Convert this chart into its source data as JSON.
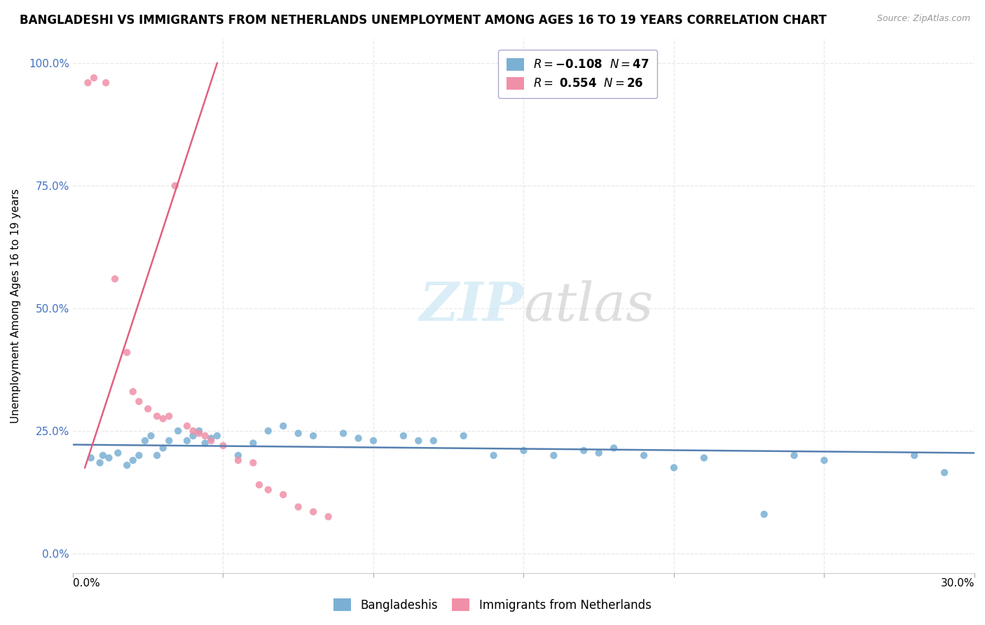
{
  "title": "BANGLADESHI VS IMMIGRANTS FROM NETHERLANDS UNEMPLOYMENT AMONG AGES 16 TO 19 YEARS CORRELATION CHART",
  "source": "Source: ZipAtlas.com",
  "ylabel": "Unemployment Among Ages 16 to 19 years",
  "x_min": 0.0,
  "x_max": 0.3,
  "y_min": -0.04,
  "y_max": 1.05,
  "ytick_vals": [
    0.0,
    0.25,
    0.5,
    0.75,
    1.0
  ],
  "ytick_labels": [
    "0.0%",
    "25.0%",
    "50.0%",
    "75.0%",
    "100.0%"
  ],
  "xtick_left_label": "0.0%",
  "xtick_right_label": "30.0%",
  "blue_scatter": [
    [
      0.006,
      0.195
    ],
    [
      0.009,
      0.185
    ],
    [
      0.01,
      0.2
    ],
    [
      0.012,
      0.195
    ],
    [
      0.015,
      0.205
    ],
    [
      0.018,
      0.18
    ],
    [
      0.02,
      0.19
    ],
    [
      0.022,
      0.2
    ],
    [
      0.024,
      0.23
    ],
    [
      0.026,
      0.24
    ],
    [
      0.028,
      0.2
    ],
    [
      0.03,
      0.215
    ],
    [
      0.032,
      0.23
    ],
    [
      0.035,
      0.25
    ],
    [
      0.038,
      0.23
    ],
    [
      0.04,
      0.24
    ],
    [
      0.042,
      0.25
    ],
    [
      0.044,
      0.225
    ],
    [
      0.046,
      0.235
    ],
    [
      0.048,
      0.24
    ],
    [
      0.055,
      0.2
    ],
    [
      0.06,
      0.225
    ],
    [
      0.065,
      0.25
    ],
    [
      0.07,
      0.26
    ],
    [
      0.075,
      0.245
    ],
    [
      0.08,
      0.24
    ],
    [
      0.09,
      0.245
    ],
    [
      0.095,
      0.235
    ],
    [
      0.1,
      0.23
    ],
    [
      0.11,
      0.24
    ],
    [
      0.115,
      0.23
    ],
    [
      0.12,
      0.23
    ],
    [
      0.13,
      0.24
    ],
    [
      0.14,
      0.2
    ],
    [
      0.15,
      0.21
    ],
    [
      0.16,
      0.2
    ],
    [
      0.17,
      0.21
    ],
    [
      0.175,
      0.205
    ],
    [
      0.18,
      0.215
    ],
    [
      0.19,
      0.2
    ],
    [
      0.2,
      0.175
    ],
    [
      0.21,
      0.195
    ],
    [
      0.23,
      0.08
    ],
    [
      0.24,
      0.2
    ],
    [
      0.25,
      0.19
    ],
    [
      0.28,
      0.2
    ],
    [
      0.29,
      0.165
    ]
  ],
  "pink_scatter": [
    [
      0.005,
      0.96
    ],
    [
      0.007,
      0.97
    ],
    [
      0.011,
      0.96
    ],
    [
      0.014,
      0.56
    ],
    [
      0.018,
      0.41
    ],
    [
      0.02,
      0.33
    ],
    [
      0.022,
      0.31
    ],
    [
      0.025,
      0.295
    ],
    [
      0.028,
      0.28
    ],
    [
      0.03,
      0.275
    ],
    [
      0.032,
      0.28
    ],
    [
      0.034,
      0.75
    ],
    [
      0.038,
      0.26
    ],
    [
      0.04,
      0.25
    ],
    [
      0.042,
      0.245
    ],
    [
      0.044,
      0.24
    ],
    [
      0.046,
      0.23
    ],
    [
      0.05,
      0.22
    ],
    [
      0.055,
      0.19
    ],
    [
      0.06,
      0.185
    ],
    [
      0.062,
      0.14
    ],
    [
      0.065,
      0.13
    ],
    [
      0.07,
      0.12
    ],
    [
      0.075,
      0.095
    ],
    [
      0.08,
      0.085
    ],
    [
      0.085,
      0.075
    ]
  ],
  "blue_line_x": [
    0.0,
    0.3
  ],
  "blue_line_y": [
    0.222,
    0.205
  ],
  "pink_line_x": [
    0.004,
    0.048
  ],
  "pink_line_y": [
    0.175,
    1.0
  ],
  "scatter_color_blue": "#7ab0d4",
  "scatter_color_pink": "#f090a8",
  "line_color_blue": "#5580b0",
  "line_color_pink": "#e06080",
  "grid_color": "#e8e8e8",
  "watermark_zip_color": "#cce8f4",
  "watermark_atlas_color": "#c8c8c8",
  "background_color": "#ffffff",
  "legend_labels": [
    "Bangladeshis",
    "Immigrants from Netherlands"
  ],
  "title_fontsize": 12,
  "axis_fontsize": 11,
  "watermark_fontsize": 55
}
